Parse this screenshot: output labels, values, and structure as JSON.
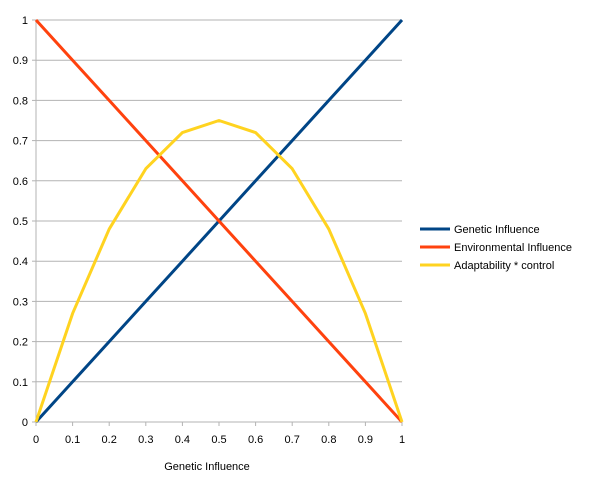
{
  "chart_data": {
    "type": "line",
    "title": "",
    "xlabel": "Genetic Influence",
    "ylabel": "",
    "x": [
      0,
      0.1,
      0.2,
      0.3,
      0.4,
      0.5,
      0.6,
      0.7,
      0.8,
      0.9,
      1
    ],
    "x_tick_labels": [
      "0",
      "0.1",
      "0.2",
      "0.3",
      "0.4",
      "0.5",
      "0.6",
      "0.7",
      "0.8",
      "0.9",
      "1"
    ],
    "y_tick_labels": [
      "0",
      "0.1",
      "0.2",
      "0.3",
      "0.4",
      "0.5",
      "0.6",
      "0.7",
      "0.8",
      "0.9",
      "1"
    ],
    "xlim": [
      0,
      1
    ],
    "ylim": [
      0,
      1
    ],
    "grid": "horizontal",
    "legend_position": "right",
    "series": [
      {
        "name": "Genetic Influence",
        "color": "#004586",
        "values": [
          0,
          0.1,
          0.2,
          0.3,
          0.4,
          0.5,
          0.6,
          0.7,
          0.8,
          0.9,
          1
        ]
      },
      {
        "name": "Environmental Influence",
        "color": "#ff420e",
        "values": [
          1,
          0.9,
          0.8,
          0.7,
          0.6,
          0.5,
          0.4,
          0.3,
          0.2,
          0.1,
          0
        ]
      },
      {
        "name": "Adaptability * control",
        "color": "#ffd320",
        "values": [
          0,
          0.27,
          0.48,
          0.63,
          0.72,
          0.75,
          0.72,
          0.63,
          0.48,
          0.27,
          0
        ]
      }
    ]
  }
}
